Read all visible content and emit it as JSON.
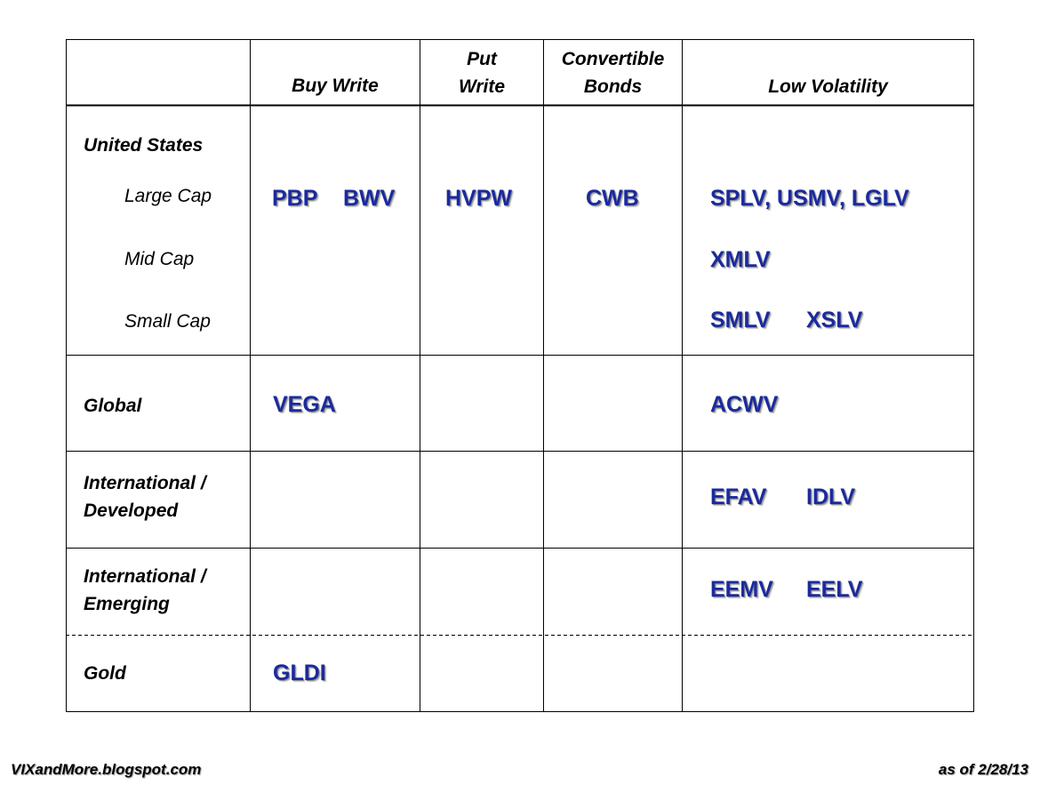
{
  "headers": {
    "buy_write": "Buy Write",
    "put_write": [
      "Put",
      "Write"
    ],
    "convertible_bonds": [
      "Convertible",
      "Bonds"
    ],
    "low_volatility": "Low Volatility"
  },
  "rows": {
    "united_states": {
      "label": "United States",
      "sub": {
        "large_cap": "Large Cap",
        "mid_cap": "Mid Cap",
        "small_cap": "Small Cap"
      },
      "large_cap_buy_write_1": "PBP",
      "large_cap_buy_write_2": "BWV",
      "large_cap_put_write": "HVPW",
      "large_cap_convertible": "CWB",
      "large_cap_low_vol": "SPLV, USMV, LGLV",
      "mid_cap_low_vol": "XMLV",
      "small_cap_low_vol_1": "SMLV",
      "small_cap_low_vol_2": "XSLV"
    },
    "global": {
      "label": "Global",
      "buy_write": "VEGA",
      "low_vol": "ACWV"
    },
    "intl_developed": {
      "label": [
        "International /",
        "Developed"
      ],
      "low_vol_1": "EFAV",
      "low_vol_2": "IDLV"
    },
    "intl_emerging": {
      "label": [
        "International /",
        "Emerging"
      ],
      "low_vol_1": "EEMV",
      "low_vol_2": "EELV"
    },
    "gold": {
      "label": "Gold",
      "buy_write": "GLDI"
    }
  },
  "footer": {
    "left": "VIXandMore.blogspot.com",
    "right": "as of 2/28/13"
  },
  "colors": {
    "ticker": "#1a2a9e",
    "border": "#000000"
  }
}
